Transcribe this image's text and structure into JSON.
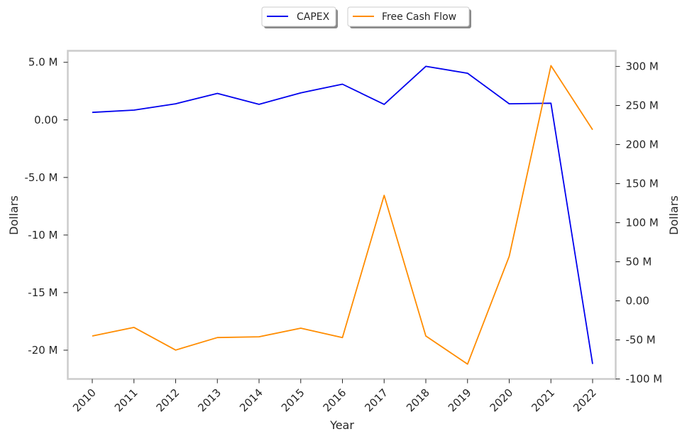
{
  "chart_data": {
    "type": "line",
    "x": [
      "2010",
      "2011",
      "2012",
      "2013",
      "2014",
      "2015",
      "2016",
      "2017",
      "2018",
      "2019",
      "2020",
      "2021",
      "2022"
    ],
    "xlabel": "Year",
    "ylabel_left": "Dollars",
    "ylabel_right": "Dollars",
    "grid": false,
    "legend_position": "top-center",
    "left_axis": {
      "ylim": [
        -22.5,
        6.0
      ],
      "ticks": [
        5,
        0,
        -5,
        -10,
        -15,
        -20
      ],
      "tick_labels": [
        "5.0 M",
        "0.00",
        "-5.0 M",
        "-10 M",
        "-15 M",
        "-20 M"
      ]
    },
    "right_axis": {
      "ylim": [
        -100,
        320
      ],
      "ticks": [
        300,
        250,
        200,
        150,
        100,
        50,
        0,
        -50,
        -100
      ],
      "tick_labels": [
        "300 M",
        "250 M",
        "200 M",
        "150 M",
        "100 M",
        "50 M",
        "0.00",
        "-50 M",
        "-100 M"
      ]
    },
    "series": [
      {
        "name": "CAPEX",
        "axis": "left",
        "color": "#0000ee",
        "values": [
          0.65,
          0.85,
          1.4,
          2.3,
          1.35,
          2.35,
          3.1,
          1.35,
          4.65,
          4.05,
          1.4,
          1.45,
          -21.2
        ]
      },
      {
        "name": "Free Cash Flow",
        "axis": "right",
        "color": "#ff8c00",
        "values": [
          -45,
          -34,
          -63,
          -47,
          -46,
          -35,
          -47,
          135,
          -45,
          -81,
          57,
          301,
          219
        ]
      }
    ]
  }
}
